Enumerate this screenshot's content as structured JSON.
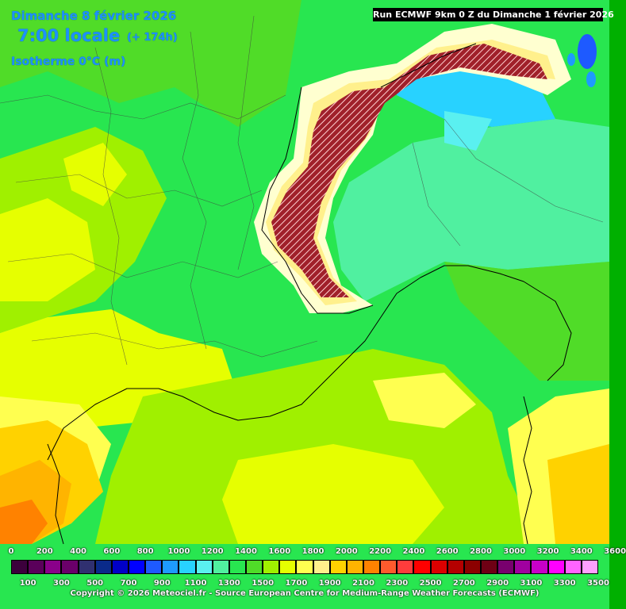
{
  "header": {
    "date": "Dimanche 8 février 2026",
    "time": "7:00 locale",
    "offset": "(+ 174h)",
    "parameter": "Isotherme 0°C (m)"
  },
  "run_label": "Run ECMWF 9km 0 Z du Dimanche 1 février 2026",
  "legend": {
    "upper_ticks": [
      "0",
      "200",
      "400",
      "600",
      "800",
      "1000",
      "1200",
      "1400",
      "1600",
      "1800",
      "2000",
      "2200",
      "2400",
      "2600",
      "2800",
      "3000",
      "3200",
      "3400",
      "3600"
    ],
    "lower_ticks": [
      "100",
      "300",
      "500",
      "700",
      "900",
      "1100",
      "1300",
      "1500",
      "1700",
      "1900",
      "2100",
      "2300",
      "2500",
      "2700",
      "2900",
      "3100",
      "3300",
      "3500"
    ],
    "colors": [
      "#3c003c",
      "#5a005a",
      "#8a008a",
      "#6a006a",
      "#303070",
      "#0a2a8a",
      "#0000c8",
      "#0000ff",
      "#1e5aff",
      "#1e9aff",
      "#28d2ff",
      "#5af0f0",
      "#50f0a0",
      "#28e650",
      "#50dc28",
      "#a0f000",
      "#e6ff00",
      "#ffff50",
      "#fff08c",
      "#ffd200",
      "#ffb400",
      "#ff8200",
      "#ff5a2d",
      "#ff3c3c",
      "#ff0000",
      "#dc0000",
      "#b40000",
      "#8c0000",
      "#6e0014",
      "#78006e",
      "#a000a0",
      "#c800c8",
      "#ff00ff",
      "#ff64ff",
      "#ffa0ff"
    ]
  },
  "copyright": "Copyright © 2026 Meteociel.fr - Source European Centre for Medium-Range Weather Forecasts (ECMWF)"
}
